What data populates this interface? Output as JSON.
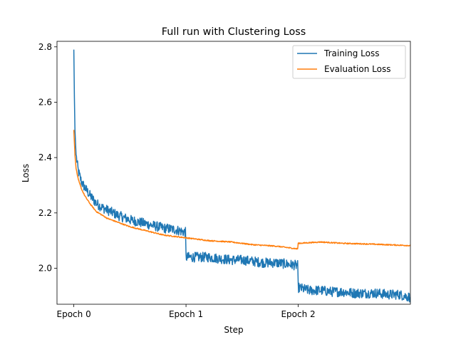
{
  "chart_data": {
    "type": "line",
    "title": "Full run with Clustering Loss",
    "xlabel": "Step",
    "ylabel": "Loss",
    "xlim": [
      -0.15,
      3.0
    ],
    "ylim": [
      1.87,
      2.82
    ],
    "xticks": [
      {
        "value": 0,
        "label": "Epoch 0"
      },
      {
        "value": 1,
        "label": "Epoch 1"
      },
      {
        "value": 2,
        "label": "Epoch 2"
      }
    ],
    "yticks": [
      {
        "value": 2.0,
        "label": "2.0"
      },
      {
        "value": 2.2,
        "label": "2.2"
      },
      {
        "value": 2.4,
        "label": "2.4"
      },
      {
        "value": 2.6,
        "label": "2.6"
      },
      {
        "value": 2.8,
        "label": "2.8"
      }
    ],
    "legend_position": "top-right",
    "series": [
      {
        "name": "Training Loss",
        "color": "#1f77b4",
        "noise": 0.018,
        "points": [
          [
            0.0,
            2.79
          ],
          [
            0.005,
            2.62
          ],
          [
            0.01,
            2.5
          ],
          [
            0.02,
            2.41
          ],
          [
            0.04,
            2.35
          ],
          [
            0.07,
            2.31
          ],
          [
            0.1,
            2.29
          ],
          [
            0.15,
            2.26
          ],
          [
            0.2,
            2.235
          ],
          [
            0.25,
            2.22
          ],
          [
            0.3,
            2.21
          ],
          [
            0.35,
            2.2
          ],
          [
            0.4,
            2.19
          ],
          [
            0.5,
            2.175
          ],
          [
            0.6,
            2.165
          ],
          [
            0.7,
            2.155
          ],
          [
            0.8,
            2.145
          ],
          [
            0.9,
            2.14
          ],
          [
            0.995,
            2.13
          ],
          [
            1.0,
            2.04
          ],
          [
            1.1,
            2.04
          ],
          [
            1.2,
            2.04
          ],
          [
            1.3,
            2.035
          ],
          [
            1.4,
            2.03
          ],
          [
            1.5,
            2.03
          ],
          [
            1.6,
            2.025
          ],
          [
            1.7,
            2.02
          ],
          [
            1.8,
            2.02
          ],
          [
            1.9,
            2.015
          ],
          [
            1.995,
            2.01
          ],
          [
            2.0,
            1.93
          ],
          [
            2.1,
            1.92
          ],
          [
            2.2,
            1.92
          ],
          [
            2.3,
            1.915
          ],
          [
            2.4,
            1.915
          ],
          [
            2.5,
            1.91
          ],
          [
            2.6,
            1.91
          ],
          [
            2.7,
            1.91
          ],
          [
            2.8,
            1.905
          ],
          [
            2.9,
            1.905
          ],
          [
            3.0,
            1.895
          ]
        ]
      },
      {
        "name": "Evaluation Loss",
        "color": "#ff7f0e",
        "noise": 0.002,
        "points": [
          [
            0.0,
            2.5
          ],
          [
            0.01,
            2.41
          ],
          [
            0.02,
            2.36
          ],
          [
            0.04,
            2.32
          ],
          [
            0.07,
            2.285
          ],
          [
            0.1,
            2.26
          ],
          [
            0.15,
            2.23
          ],
          [
            0.2,
            2.205
          ],
          [
            0.3,
            2.18
          ],
          [
            0.4,
            2.165
          ],
          [
            0.5,
            2.15
          ],
          [
            0.6,
            2.14
          ],
          [
            0.7,
            2.13
          ],
          [
            0.8,
            2.12
          ],
          [
            0.9,
            2.115
          ],
          [
            1.0,
            2.11
          ],
          [
            1.2,
            2.1
          ],
          [
            1.4,
            2.095
          ],
          [
            1.6,
            2.085
          ],
          [
            1.8,
            2.08
          ],
          [
            1.995,
            2.07
          ],
          [
            2.0,
            2.09
          ],
          [
            2.2,
            2.095
          ],
          [
            2.4,
            2.09
          ],
          [
            2.6,
            2.088
          ],
          [
            2.8,
            2.085
          ],
          [
            3.0,
            2.082
          ]
        ]
      }
    ]
  }
}
